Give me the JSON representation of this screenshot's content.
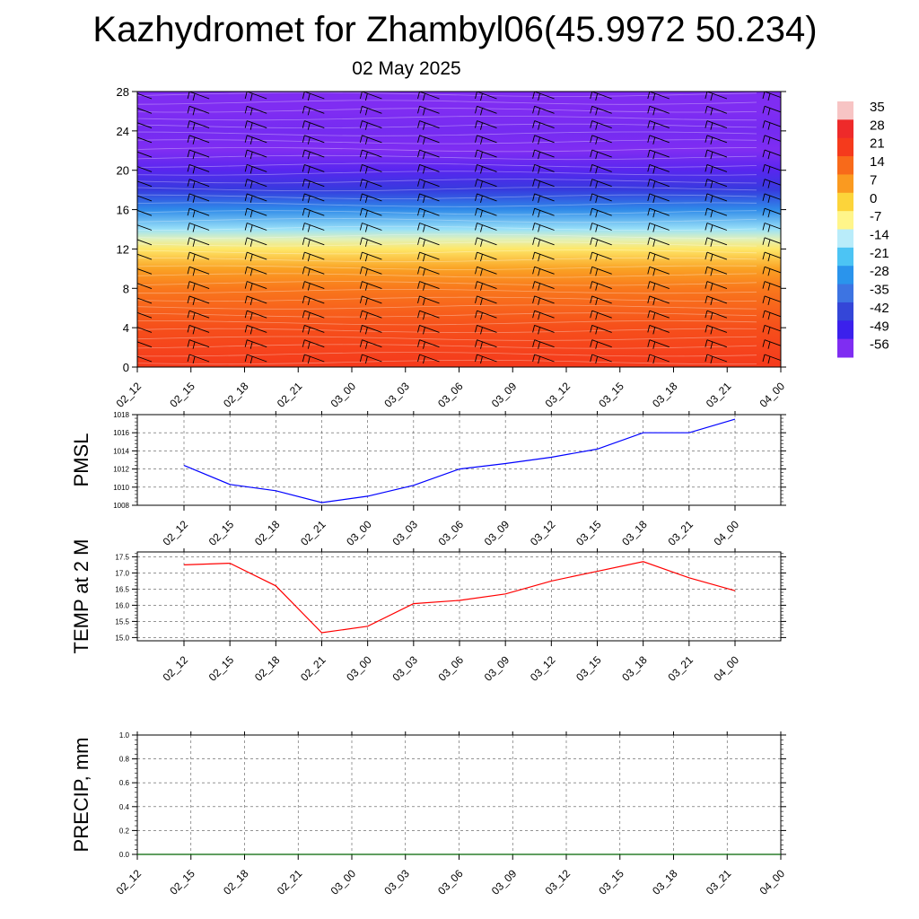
{
  "title": "Kazhydromet for Zhambyl06(45.9972 50.234)",
  "subtitle": "02 May 2025",
  "time_labels": [
    "02_12",
    "02_15",
    "02_18",
    "02_21",
    "03_00",
    "03_03",
    "03_06",
    "03_09",
    "03_12",
    "03_15",
    "03_18",
    "03_21",
    "04_00"
  ],
  "chart_data": [
    {
      "type": "heatmap",
      "name": "cross-section",
      "description_levels": "height levels 0-28, temperature shaded with wind barbs",
      "x": [
        "02_12",
        "02_15",
        "02_18",
        "02_21",
        "03_00",
        "03_03",
        "03_06",
        "03_09",
        "03_12",
        "03_15",
        "03_18",
        "03_21",
        "04_00"
      ],
      "yticks": [
        0,
        4,
        8,
        12,
        16,
        20,
        24,
        28
      ],
      "ylim": [
        0,
        28
      ],
      "colorbar": {
        "labels": [
          "35",
          "28",
          "21",
          "14",
          "7",
          "0",
          "-7",
          "-14",
          "-21",
          "-28",
          "-35",
          "-42",
          "-49",
          "-56"
        ],
        "colors": [
          "#f7c4c4",
          "#ee2a2a",
          "#f53a1c",
          "#f86a1a",
          "#fa9a20",
          "#fcd43a",
          "#fff58a",
          "#b9ecfa",
          "#4cc4f4",
          "#2a94ec",
          "#3d74e2",
          "#3446d8",
          "#3b20ec",
          "#7f2df2"
        ]
      },
      "temperature_profile": [
        {
          "level": 0,
          "value": 21
        },
        {
          "level": 4,
          "value": 18
        },
        {
          "level": 8,
          "value": 12
        },
        {
          "level": 10,
          "value": 6
        },
        {
          "level": 12,
          "value": -4
        },
        {
          "level": 13,
          "value": -10
        },
        {
          "level": 14,
          "value": -16
        },
        {
          "level": 16,
          "value": -30
        },
        {
          "level": 18,
          "value": -44
        },
        {
          "level": 20,
          "value": -52
        },
        {
          "level": 22,
          "value": -56
        },
        {
          "level": 24,
          "value": -55
        },
        {
          "level": 26,
          "value": -58
        },
        {
          "level": 28,
          "value": -60
        }
      ]
    },
    {
      "type": "line",
      "ylabel": "PMSL",
      "x": [
        "02_12",
        "02_15",
        "02_18",
        "02_21",
        "03_00",
        "03_03",
        "03_06",
        "03_09",
        "03_12",
        "03_15",
        "03_18",
        "03_21",
        "04_00"
      ],
      "yticks": [
        "1008",
        "1010",
        "1012",
        "1014",
        "1016",
        "1018"
      ],
      "ylim": [
        1008,
        1018
      ],
      "series": [
        {
          "values": [
            1012.4,
            1010.3,
            1009.6,
            1008.3,
            1009.0,
            1010.2,
            1012.0,
            1012.6,
            1013.3,
            1014.2,
            1016.0,
            1016.0,
            1017.5
          ],
          "color": "#0000ff"
        }
      ]
    },
    {
      "type": "line",
      "ylabel": "TEMP at 2 M",
      "x": [
        "02_12",
        "02_15",
        "02_18",
        "02_21",
        "03_00",
        "03_03",
        "03_06",
        "03_09",
        "03_12",
        "03_15",
        "03_18",
        "03_21",
        "04_00"
      ],
      "yticks": [
        "15.0",
        "15.5",
        "16.0",
        "16.5",
        "17.0",
        "17.5"
      ],
      "ylim": [
        14.9,
        17.65
      ],
      "series": [
        {
          "values": [
            17.25,
            17.3,
            16.6,
            15.15,
            15.35,
            16.05,
            16.15,
            16.35,
            16.75,
            17.05,
            17.35,
            16.85,
            16.45
          ],
          "color": "#ff0000"
        }
      ]
    },
    {
      "type": "line",
      "ylabel": "PRECIP, mm",
      "x": [
        "02_12",
        "02_15",
        "02_18",
        "02_21",
        "03_00",
        "03_03",
        "03_06",
        "03_09",
        "03_12",
        "03_15",
        "03_18",
        "03_21",
        "04_00"
      ],
      "yticks": [
        "0.0",
        "0.2",
        "0.4",
        "0.6",
        "0.8",
        "1.0"
      ],
      "ylim": [
        0,
        1
      ],
      "series": [
        {
          "values": [
            0,
            0,
            0,
            0,
            0,
            0,
            0,
            0,
            0,
            0,
            0,
            0,
            0
          ],
          "color": "#006400"
        }
      ]
    }
  ]
}
